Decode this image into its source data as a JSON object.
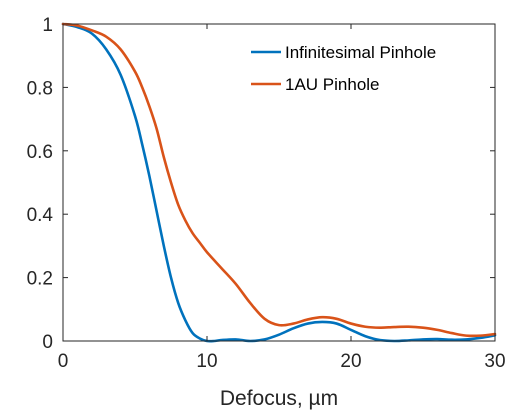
{
  "chart_data": {
    "type": "line",
    "title": "",
    "xlabel": "Defocus, µm",
    "ylabel": "",
    "xlim": [
      0,
      30
    ],
    "ylim": [
      0,
      1
    ],
    "xticks": [
      0,
      10,
      20,
      30
    ],
    "xtick_labels": [
      "0",
      "10",
      "20",
      "30"
    ],
    "yticks": [
      0,
      0.2,
      0.4,
      0.6,
      0.8,
      1
    ],
    "ytick_labels": [
      "0",
      "0.2",
      "0.4",
      "0.6",
      "0.8",
      "1"
    ],
    "grid": false,
    "legend_position": "top-right",
    "series": [
      {
        "name": "Infinitesimal Pinhole",
        "color": "#0072BD",
        "x": [
          0,
          1,
          2,
          3,
          4,
          5,
          5.5,
          6,
          6.5,
          7,
          7.5,
          8,
          8.5,
          9,
          9.5,
          10,
          10.5,
          11,
          12,
          13,
          14,
          15,
          16,
          17,
          18,
          19,
          20,
          21,
          22,
          23,
          24,
          25,
          26,
          27,
          28,
          29,
          30
        ],
        "y": [
          1.0,
          0.99,
          0.97,
          0.92,
          0.84,
          0.71,
          0.62,
          0.52,
          0.41,
          0.3,
          0.2,
          0.12,
          0.065,
          0.025,
          0.008,
          0.0,
          0.0,
          0.003,
          0.005,
          0.0,
          0.005,
          0.02,
          0.04,
          0.055,
          0.06,
          0.055,
          0.035,
          0.015,
          0.003,
          0.0,
          0.002,
          0.005,
          0.006,
          0.004,
          0.005,
          0.01,
          0.018
        ]
      },
      {
        "name": "1AU Pinhole",
        "color": "#D95319",
        "x": [
          0,
          1,
          2,
          3,
          4,
          5,
          5.5,
          6,
          6.5,
          7,
          7.5,
          8,
          8.5,
          9,
          9.5,
          10,
          11,
          12,
          13,
          14,
          15,
          16,
          17,
          18,
          19,
          20,
          21,
          22,
          23,
          24,
          25,
          26,
          27,
          28,
          29,
          30
        ],
        "y": [
          1.0,
          0.995,
          0.98,
          0.96,
          0.92,
          0.85,
          0.8,
          0.74,
          0.67,
          0.58,
          0.5,
          0.43,
          0.38,
          0.34,
          0.31,
          0.28,
          0.23,
          0.18,
          0.12,
          0.07,
          0.05,
          0.055,
          0.068,
          0.075,
          0.07,
          0.055,
          0.045,
          0.042,
          0.044,
          0.045,
          0.042,
          0.035,
          0.025,
          0.017,
          0.017,
          0.022
        ]
      }
    ]
  }
}
